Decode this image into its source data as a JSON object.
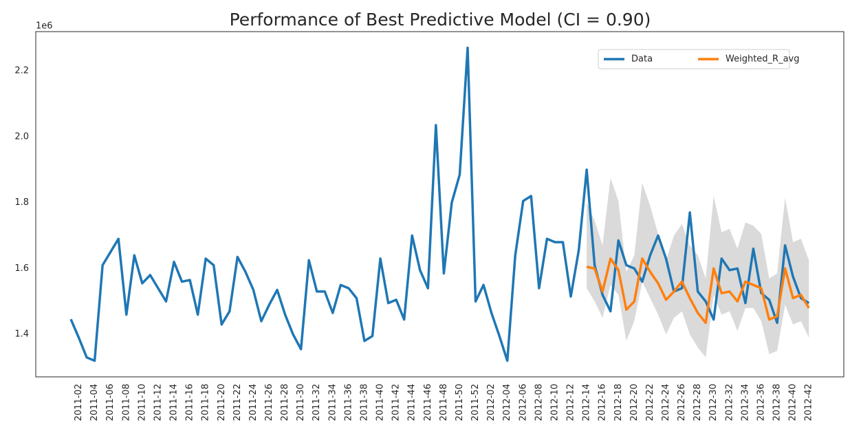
{
  "chart_data": {
    "type": "line",
    "title": "Performance of Best Predictive Model (CI = 0.90)",
    "y_offset_label": "1e6",
    "categories": [
      null,
      "2011-02",
      null,
      "2011-04",
      null,
      "2011-06",
      null,
      "2011-08",
      null,
      "2011-10",
      null,
      "2011-12",
      null,
      "2011-14",
      null,
      "2011-16",
      null,
      "2011-18",
      null,
      "2011-20",
      null,
      "2011-22",
      null,
      "2011-24",
      null,
      "2011-26",
      null,
      "2011-28",
      null,
      "2011-30",
      null,
      "2011-32",
      null,
      "2011-34",
      null,
      "2011-36",
      null,
      "2011-38",
      null,
      "2011-40",
      null,
      "2011-42",
      null,
      "2011-44",
      null,
      "2011-46",
      null,
      "2011-48",
      null,
      "2011-50",
      null,
      "2011-52",
      null,
      "2012-02",
      null,
      "2012-04",
      null,
      "2012-06",
      null,
      "2012-08",
      null,
      "2012-10",
      null,
      "2012-12",
      null,
      "2012-14",
      null,
      "2012-16",
      null,
      "2012-18",
      null,
      "2012-20",
      null,
      "2012-22",
      null,
      "2012-24",
      null,
      "2012-26",
      null,
      "2012-28",
      null,
      "2012-30",
      null,
      "2012-32",
      null,
      "2012-34",
      null,
      "2012-36",
      null,
      "2012-38",
      null,
      "2012-40",
      null,
      "2012-42"
    ],
    "series": [
      {
        "name": "Data",
        "color": "#1f77b4",
        "values": [
          1.446,
          1.39,
          1.33,
          1.32,
          1.61,
          1.65,
          1.69,
          1.46,
          1.64,
          1.555,
          1.58,
          1.54,
          1.5,
          1.62,
          1.56,
          1.565,
          1.46,
          1.63,
          1.61,
          1.43,
          1.47,
          1.635,
          1.59,
          1.535,
          1.44,
          1.49,
          1.535,
          1.46,
          1.4,
          1.355,
          1.625,
          1.53,
          1.53,
          1.465,
          1.55,
          1.54,
          1.51,
          1.38,
          1.395,
          1.63,
          1.495,
          1.505,
          1.445,
          1.7,
          1.595,
          1.54,
          2.035,
          1.585,
          1.8,
          1.885,
          2.27,
          1.5,
          1.55,
          1.465,
          1.395,
          1.32,
          1.64,
          1.805,
          1.82,
          1.54,
          1.69,
          1.68,
          1.68,
          1.515,
          1.655,
          1.9,
          1.61,
          1.52,
          1.47,
          1.685,
          1.61,
          1.6,
          1.56,
          1.64,
          1.7,
          1.63,
          1.53,
          1.54,
          1.77,
          1.53,
          1.5,
          1.445,
          1.63,
          1.595,
          1.6,
          1.495,
          1.66,
          1.525,
          1.505,
          1.435,
          1.67,
          1.575,
          1.51,
          1.495
        ]
      },
      {
        "name": "Weighted_R_avg",
        "color": "#ff7f0e",
        "values": [
          null,
          null,
          null,
          null,
          null,
          null,
          null,
          null,
          null,
          null,
          null,
          null,
          null,
          null,
          null,
          null,
          null,
          null,
          null,
          null,
          null,
          null,
          null,
          null,
          null,
          null,
          null,
          null,
          null,
          null,
          null,
          null,
          null,
          null,
          null,
          null,
          null,
          null,
          null,
          null,
          null,
          null,
          null,
          null,
          null,
          null,
          null,
          null,
          null,
          null,
          null,
          null,
          null,
          null,
          null,
          null,
          null,
          null,
          null,
          null,
          null,
          null,
          null,
          null,
          null,
          1.605,
          1.6,
          1.53,
          1.63,
          1.595,
          1.475,
          1.5,
          1.63,
          1.59,
          1.555,
          1.505,
          1.53,
          1.56,
          1.51,
          1.465,
          1.435,
          1.6,
          1.525,
          1.53,
          1.5,
          1.56,
          1.55,
          1.54,
          1.445,
          1.455,
          1.6,
          1.51,
          1.52,
          1.48
        ]
      }
    ],
    "band": {
      "color": "#d3d3d3",
      "lower": [
        null,
        null,
        null,
        null,
        null,
        null,
        null,
        null,
        null,
        null,
        null,
        null,
        null,
        null,
        null,
        null,
        null,
        null,
        null,
        null,
        null,
        null,
        null,
        null,
        null,
        null,
        null,
        null,
        null,
        null,
        null,
        null,
        null,
        null,
        null,
        null,
        null,
        null,
        null,
        null,
        null,
        null,
        null,
        null,
        null,
        null,
        null,
        null,
        null,
        null,
        null,
        null,
        null,
        null,
        null,
        null,
        null,
        null,
        null,
        null,
        null,
        null,
        null,
        null,
        null,
        1.54,
        1.5,
        1.45,
        1.55,
        1.52,
        1.38,
        1.44,
        1.56,
        1.51,
        1.46,
        1.4,
        1.45,
        1.47,
        1.4,
        1.36,
        1.33,
        1.52,
        1.46,
        1.47,
        1.41,
        1.48,
        1.48,
        1.44,
        1.34,
        1.35,
        1.49,
        1.43,
        1.44,
        1.39
      ],
      "upper": [
        null,
        null,
        null,
        null,
        null,
        null,
        null,
        null,
        null,
        null,
        null,
        null,
        null,
        null,
        null,
        null,
        null,
        null,
        null,
        null,
        null,
        null,
        null,
        null,
        null,
        null,
        null,
        null,
        null,
        null,
        null,
        null,
        null,
        null,
        null,
        null,
        null,
        null,
        null,
        null,
        null,
        null,
        null,
        null,
        null,
        null,
        null,
        null,
        null,
        null,
        null,
        null,
        null,
        null,
        null,
        null,
        null,
        null,
        null,
        null,
        null,
        null,
        null,
        null,
        null,
        1.8,
        1.745,
        1.67,
        1.875,
        1.805,
        1.59,
        1.64,
        1.86,
        1.79,
        1.705,
        1.625,
        1.7,
        1.735,
        1.67,
        1.64,
        1.57,
        1.82,
        1.71,
        1.72,
        1.66,
        1.74,
        1.73,
        1.705,
        1.57,
        1.585,
        1.815,
        1.68,
        1.69,
        1.625
      ]
    },
    "ylim": [
      1.271,
      2.319
    ],
    "yticks": [
      1.4,
      1.6,
      1.8,
      {
        "value": 2,
        "label": "2.0"
      },
      2.2
    ],
    "grid": false,
    "legend": "upper right"
  }
}
